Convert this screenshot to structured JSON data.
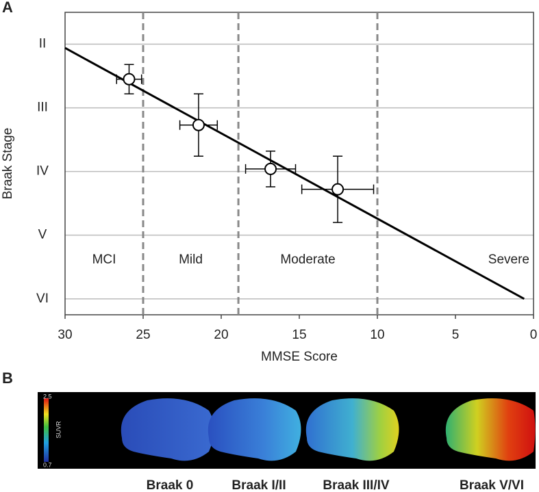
{
  "panel_labels": [
    "A",
    "B"
  ],
  "chart_data": {
    "type": "scatter",
    "xlabel": "MMSE Score",
    "ylabel": "Braak Stage",
    "xlim": [
      30,
      0
    ],
    "xticks": [
      30,
      25,
      20,
      15,
      10,
      5,
      0
    ],
    "ylim": [
      1.5,
      6.25
    ],
    "yticks": [
      {
        "value": 2,
        "label": "II"
      },
      {
        "value": 3,
        "label": "III"
      },
      {
        "value": 4,
        "label": "IV"
      },
      {
        "value": 5,
        "label": "V"
      },
      {
        "value": 6,
        "label": "VI"
      }
    ],
    "grid": true,
    "series": [
      {
        "color": "#000000",
        "x": [
          25.9,
          21.45,
          16.84,
          12.54
        ],
        "values": [
          2.55,
          3.27,
          3.96,
          4.28
        ],
        "xerr": [
          0.8,
          1.2,
          1.6,
          2.3
        ],
        "yerr": [
          0.23,
          0.49,
          0.28,
          0.52
        ]
      }
    ],
    "fit": {
      "x": [
        30,
        0.6
      ],
      "y": [
        2.06,
        6.0
      ]
    },
    "dividers": [
      25,
      18.9,
      10
    ],
    "regions": [
      "MCI",
      "Mild",
      "Moderate",
      "Severe"
    ]
  },
  "panel_b": {
    "colorbar": {
      "max": "2.5",
      "label": "SUVR",
      "min": "0.7"
    },
    "labels": [
      "Braak 0",
      "Braak I/II",
      "Braak III/IV",
      "Braak V/VI"
    ]
  }
}
